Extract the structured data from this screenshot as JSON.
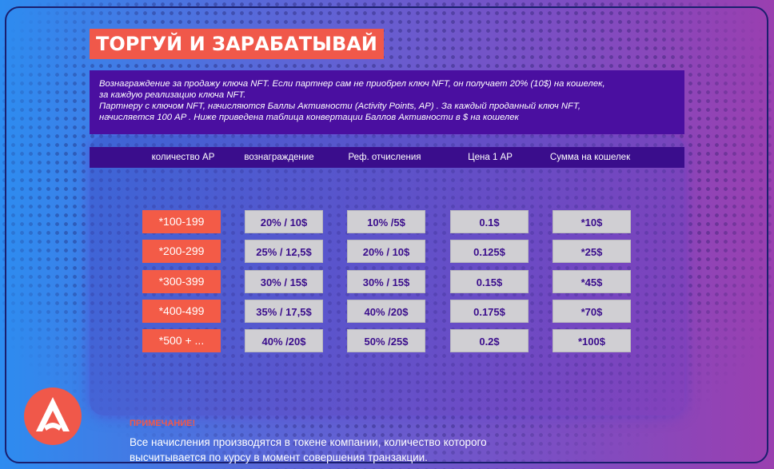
{
  "title": "ТОРГУЙ И ЗАРАБАТЫВАЙ",
  "description": [
    "Вознаграждение за продажу ключа NFT. Если партнер сам не приобрел ключ NFT, он получает 20% (10$) на кошелек,",
    "за каждую реализацию ключа NFT.",
    "Партнеру с ключом NFT, начисляются Баллы Активности (Activity Points, AP) .   За каждый проданный ключ NFT,",
    "начисляется 100 AP .  Ниже приведена таблица конвертации Баллов Активности в $ на кошелек"
  ],
  "table": {
    "headers": [
      "количество AP",
      "вознаграждение",
      "Реф. отчисления",
      "Цена 1 AP",
      "Сумма на кошелек"
    ],
    "rows": [
      [
        "*100-199",
        "20% / 10$",
        "10% /5$",
        "0.1$",
        "*10$"
      ],
      [
        "*200-299",
        "25% / 12,5$",
        "20% / 10$",
        "0.125$",
        "*25$"
      ],
      [
        "*300-399",
        "30% / 15$",
        "30% / 15$",
        "0.15$",
        "*45$"
      ],
      [
        "*400-499",
        "35% / 17,5$",
        "40% /20$",
        "0.175$",
        "*70$"
      ],
      [
        "*500 + ...",
        "40% /20$",
        "50% /25$",
        "0.2$",
        "*100$"
      ]
    ]
  },
  "note": {
    "title": "ПРИМЕЧАНИЕ!",
    "lines": [
      "Все начисления производятся в токене компании, количество которого",
      "высчитывается по курсу в  момент совершения транзакции."
    ]
  },
  "colors": {
    "accent": "#f0584a",
    "header": "#3a0d8c",
    "cell": "#d0cfd3"
  }
}
